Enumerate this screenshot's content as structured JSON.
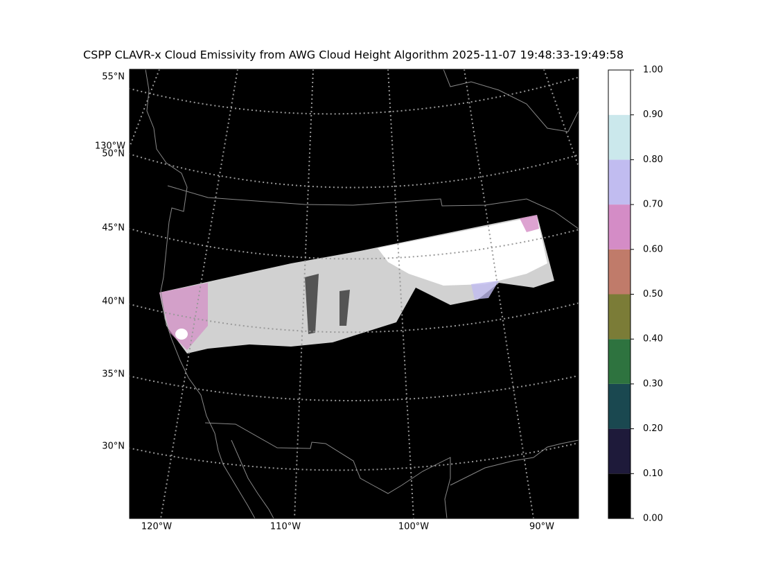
{
  "title": "CSPP CLAVR-x Cloud Emissivity from AWG Cloud Height Algorithm 2025-11-07 19:48:33-19:49:58",
  "map": {
    "lat_labels": [
      "55°N",
      "50°N",
      "45°N",
      "40°N",
      "35°N",
      "30°N"
    ],
    "lon_labels": [
      "130°W",
      "120°W",
      "110°W",
      "100°W",
      "90°W"
    ]
  },
  "colorbar": {
    "bounds": [
      0,
      0.1,
      0.2,
      0.3,
      0.4,
      0.5,
      0.6,
      0.7,
      0.8,
      0.9,
      1
    ],
    "colors": [
      "#000000",
      "#1e1a3a",
      "#1a4850",
      "#2e733f",
      "#7b7c37",
      "#c07b6a",
      "#d48cc6",
      "#c1bcf0",
      "#cbe8ec",
      "#ffffff"
    ],
    "ticks": [
      {
        "value": 0,
        "label": "0.00"
      },
      {
        "value": 0.1,
        "label": "0.10"
      },
      {
        "value": 0.2,
        "label": "0.20"
      },
      {
        "value": 0.3,
        "label": "0.30"
      },
      {
        "value": 0.4,
        "label": "0.40"
      },
      {
        "value": 0.5,
        "label": "0.50"
      },
      {
        "value": 0.6,
        "label": "0.60"
      },
      {
        "value": 0.7,
        "label": "0.70"
      },
      {
        "value": 0.8,
        "label": "0.80"
      },
      {
        "value": 0.9,
        "label": "0.90"
      },
      {
        "value": 1,
        "label": "1.00"
      }
    ]
  }
}
